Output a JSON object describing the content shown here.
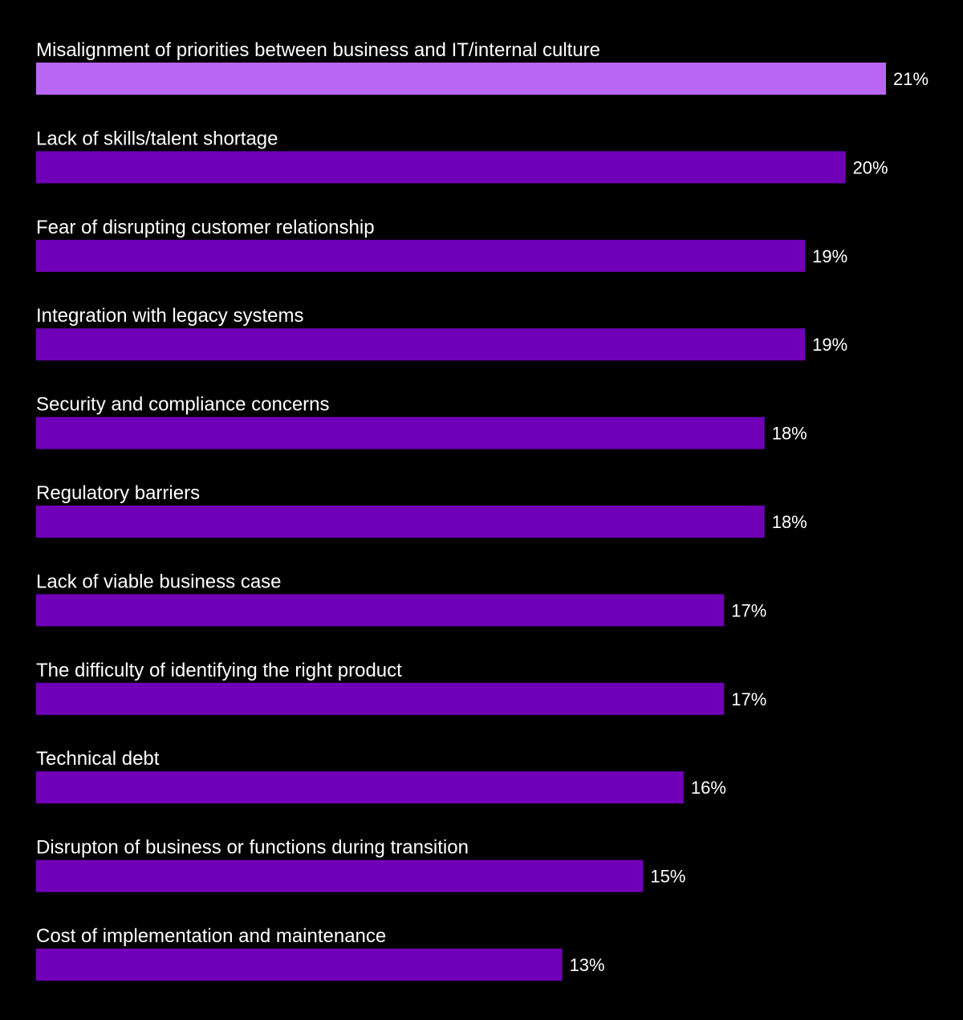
{
  "chart_data": {
    "type": "bar",
    "orientation": "horizontal",
    "categories": [
      "Misalignment of priorities between business and IT/internal culture",
      "Lack of skills/talent shortage",
      "Fear of disrupting customer relationship",
      "Integration with legacy systems",
      "Security and compliance concerns",
      "Regulatory barriers",
      "Lack of viable business case",
      "The difficulty of identifying the right product",
      "Technical debt",
      "Disrupton of business or functions during transition",
      "Cost of implementation and maintenance"
    ],
    "values": [
      21,
      20,
      19,
      19,
      18,
      18,
      17,
      17,
      16,
      15,
      13
    ],
    "value_labels": [
      "21%",
      "20%",
      "19%",
      "19%",
      "18%",
      "18%",
      "17%",
      "17%",
      "16%",
      "15%",
      "13%"
    ],
    "unit": "%",
    "highlight_index": 0,
    "colors": {
      "background": "#000000",
      "bar": "#7000b8",
      "highlight_bar": "#b966f5",
      "text": "#ffffff"
    },
    "title": "",
    "xlabel": "",
    "ylabel": "",
    "grid": false,
    "legend": "none"
  }
}
